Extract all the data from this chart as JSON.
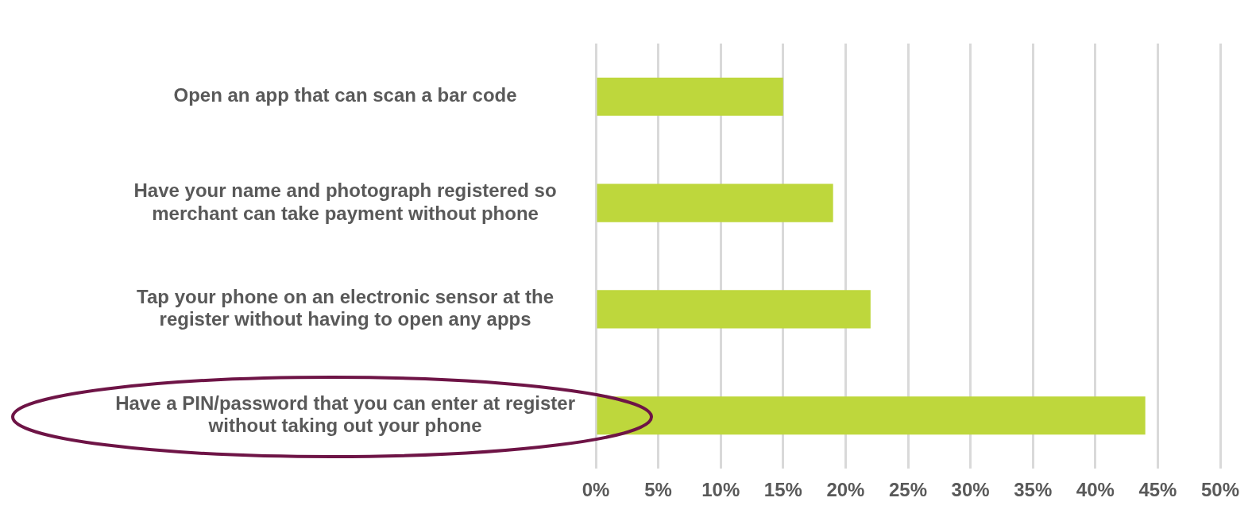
{
  "chart_data": {
    "type": "bar",
    "orientation": "horizontal",
    "categories": [
      "Open an app that can scan a bar code",
      "Have your name and photograph registered so merchant can take payment without phone",
      "Tap your phone on an electronic sensor at the register without having to open any apps",
      "Have a PIN/password that you can enter at register without taking out your phone"
    ],
    "values": [
      15,
      19,
      22,
      44
    ],
    "color": "#bed73c",
    "xlim": [
      0,
      50
    ],
    "xticks": [
      {
        "value": 0,
        "label": "0%"
      },
      {
        "value": 5,
        "label": "5%"
      },
      {
        "value": 10,
        "label": "10%"
      },
      {
        "value": 15,
        "label": "15%"
      },
      {
        "value": 20,
        "label": "20%"
      },
      {
        "value": 25,
        "label": "25%"
      },
      {
        "value": 30,
        "label": "30%"
      },
      {
        "value": 35,
        "label": "35%"
      },
      {
        "value": 40,
        "label": "40%"
      },
      {
        "value": 45,
        "label": "45%"
      },
      {
        "value": 50,
        "label": "50%"
      }
    ],
    "grid": "x",
    "legend": false
  }
}
